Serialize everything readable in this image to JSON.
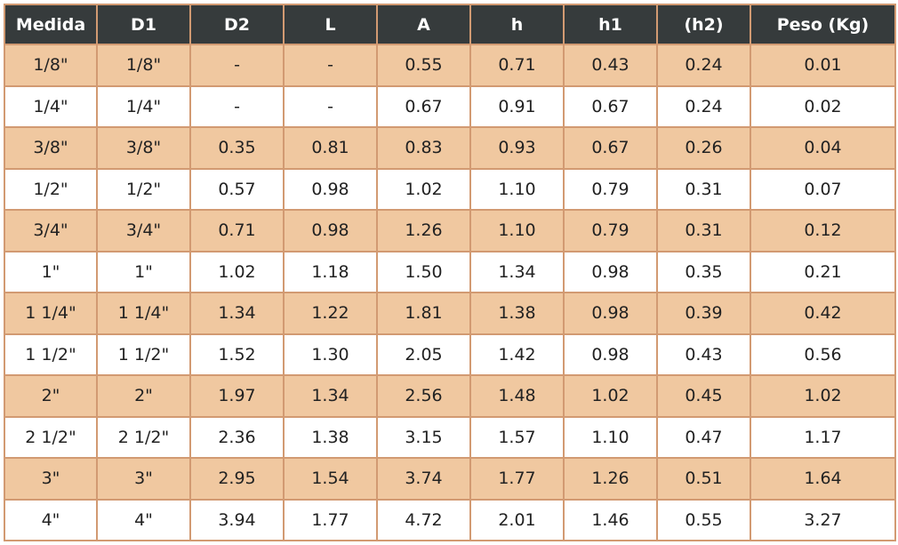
{
  "table": {
    "header": [
      "Medida",
      "D1",
      "D2",
      "L",
      "A",
      "h",
      "h1",
      "(h2)",
      "Peso (Kg)"
    ],
    "rows": [
      [
        "1/8\"",
        "1/8\"",
        "-",
        "-",
        "0.55",
        "0.71",
        "0.43",
        "0.24",
        "0.01"
      ],
      [
        "1/4\"",
        "1/4\"",
        "-",
        "-",
        "0.67",
        "0.91",
        "0.67",
        "0.24",
        "0.02"
      ],
      [
        "3/8\"",
        "3/8\"",
        "0.35",
        "0.81",
        "0.83",
        "0.93",
        "0.67",
        "0.26",
        "0.04"
      ],
      [
        "1/2\"",
        "1/2\"",
        "0.57",
        "0.98",
        "1.02",
        "1.10",
        "0.79",
        "0.31",
        "0.07"
      ],
      [
        "3/4\"",
        "3/4\"",
        "0.71",
        "0.98",
        "1.26",
        "1.10",
        "0.79",
        "0.31",
        "0.12"
      ],
      [
        "1\"",
        "1\"",
        "1.02",
        "1.18",
        "1.50",
        "1.34",
        "0.98",
        "0.35",
        "0.21"
      ],
      [
        "1 1/4\"",
        "1 1/4\"",
        "1.34",
        "1.22",
        "1.81",
        "1.38",
        "0.98",
        "0.39",
        "0.42"
      ],
      [
        "1 1/2\"",
        "1 1/2\"",
        "1.52",
        "1.30",
        "2.05",
        "1.42",
        "0.98",
        "0.43",
        "0.56"
      ],
      [
        "2\"",
        "2\"",
        "1.97",
        "1.34",
        "2.56",
        "1.48",
        "1.02",
        "0.45",
        "1.02"
      ],
      [
        "2 1/2\"",
        "2 1/2\"",
        "2.36",
        "1.38",
        "3.15",
        "1.57",
        "1.10",
        "0.47",
        "1.17"
      ],
      [
        "3\"",
        "3\"",
        "2.95",
        "1.54",
        "3.74",
        "1.77",
        "1.26",
        "0.51",
        "1.64"
      ],
      [
        "4\"",
        "4\"",
        "3.94",
        "1.77",
        "4.72",
        "2.01",
        "1.46",
        "0.55",
        "3.27"
      ]
    ]
  }
}
